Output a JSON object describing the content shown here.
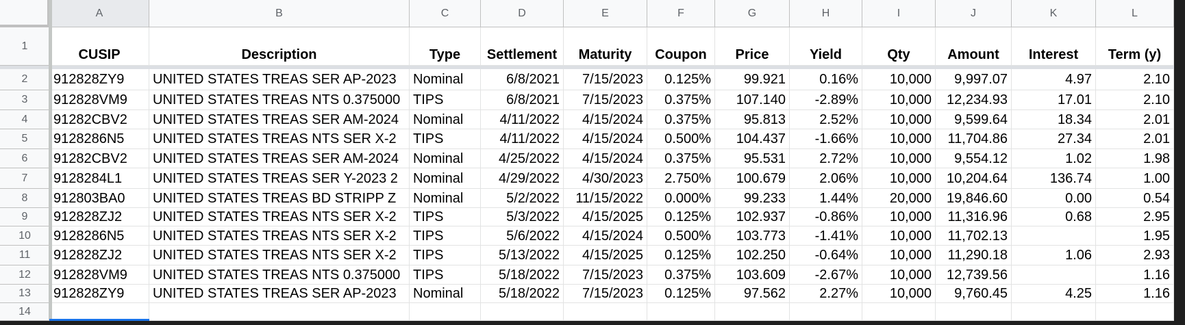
{
  "columns": [
    "A",
    "B",
    "C",
    "D",
    "E",
    "F",
    "G",
    "H",
    "I",
    "J",
    "K",
    "L"
  ],
  "row_numbers": [
    "1",
    "2",
    "3",
    "4",
    "5",
    "6",
    "7",
    "8",
    "9",
    "10",
    "11",
    "12",
    "13",
    "14"
  ],
  "headers": [
    "CUSIP",
    "Description",
    "Type",
    "Settlement",
    "Maturity",
    "Coupon",
    "Price",
    "Yield",
    "Qty",
    "Amount",
    "Interest",
    "Term (y)"
  ],
  "rows": [
    [
      "912828ZY9",
      "UNITED STATES TREAS SER AP-2023",
      "Nominal",
      "6/8/2021",
      "7/15/2023",
      "0.125%",
      "99.921",
      "0.16%",
      "10,000",
      "9,997.07",
      "4.97",
      "2.10"
    ],
    [
      "912828VM9",
      "UNITED STATES TREAS NTS 0.375000",
      "TIPS",
      "6/8/2021",
      "7/15/2023",
      "0.375%",
      "107.140",
      "-2.89%",
      "10,000",
      "12,234.93",
      "17.01",
      "2.10"
    ],
    [
      "91282CBV2",
      "UNITED STATES TREAS SER AM-2024",
      "Nominal",
      "4/11/2022",
      "4/15/2024",
      "0.375%",
      "95.813",
      "2.52%",
      "10,000",
      "9,599.64",
      "18.34",
      "2.01"
    ],
    [
      "9128286N5",
      "UNITED STATES TREAS NTS SER X-2",
      "TIPS",
      "4/11/2022",
      "4/15/2024",
      "0.500%",
      "104.437",
      "-1.66%",
      "10,000",
      "11,704.86",
      "27.34",
      "2.01"
    ],
    [
      "91282CBV2",
      "UNITED STATES TREAS SER AM-2024",
      "Nominal",
      "4/25/2022",
      "4/15/2024",
      "0.375%",
      "95.531",
      "2.72%",
      "10,000",
      "9,554.12",
      "1.02",
      "1.98"
    ],
    [
      "9128284L1",
      "UNITED STATES TREAS SER Y-2023 2",
      "Nominal",
      "4/29/2022",
      "4/30/2023",
      "2.750%",
      "100.679",
      "2.06%",
      "10,000",
      "10,204.64",
      "136.74",
      "1.00"
    ],
    [
      "912803BA0",
      "UNITED STATES TREAS BD STRIPP Z",
      "Nominal",
      "5/2/2022",
      "11/15/2022",
      "0.000%",
      "99.233",
      "1.44%",
      "20,000",
      "19,846.60",
      "0.00",
      "0.54"
    ],
    [
      "912828ZJ2",
      "UNITED STATES TREAS NTS SER X-2",
      "TIPS",
      "5/3/2022",
      "4/15/2025",
      "0.125%",
      "102.937",
      "-0.86%",
      "10,000",
      "11,316.96",
      "0.68",
      "2.95"
    ],
    [
      "9128286N5",
      "UNITED STATES TREAS NTS SER X-2",
      "TIPS",
      "5/6/2022",
      "4/15/2024",
      "0.500%",
      "103.773",
      "-1.41%",
      "10,000",
      "11,702.13",
      "",
      "1.95"
    ],
    [
      "912828ZJ2",
      "UNITED STATES TREAS NTS SER X-2",
      "TIPS",
      "5/13/2022",
      "4/15/2025",
      "0.125%",
      "102.250",
      "-0.64%",
      "10,000",
      "11,290.18",
      "1.06",
      "2.93"
    ],
    [
      "912828VM9",
      "UNITED STATES TREAS NTS 0.375000",
      "TIPS",
      "5/18/2022",
      "7/15/2023",
      "0.375%",
      "103.609",
      "-2.67%",
      "10,000",
      "12,739.56",
      "",
      "1.16"
    ],
    [
      "912828ZY9",
      "UNITED STATES TREAS SER AP-2023",
      "Nominal",
      "5/18/2022",
      "7/15/2023",
      "0.125%",
      "97.562",
      "2.27%",
      "10,000",
      "9,760.45",
      "4.25",
      "1.16"
    ]
  ]
}
